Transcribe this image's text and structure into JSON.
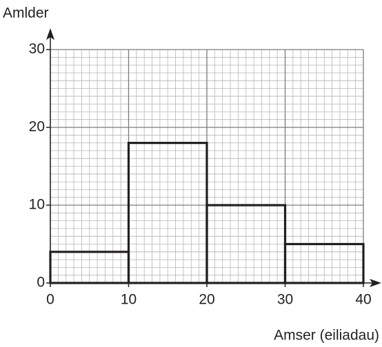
{
  "chart_data": {
    "type": "histogram",
    "y_label": "Amlder",
    "x_label": "Amser (eiliadau)",
    "bins": [
      0,
      10,
      20,
      30,
      40
    ],
    "values": [
      4,
      18,
      10,
      5
    ],
    "color": "#231f20",
    "xlim": [
      0,
      40
    ],
    "ylim": [
      0,
      30
    ],
    "xticks": [
      0,
      10,
      20,
      30,
      40
    ],
    "yticks": [
      0,
      10,
      20,
      30
    ],
    "grid": true
  }
}
